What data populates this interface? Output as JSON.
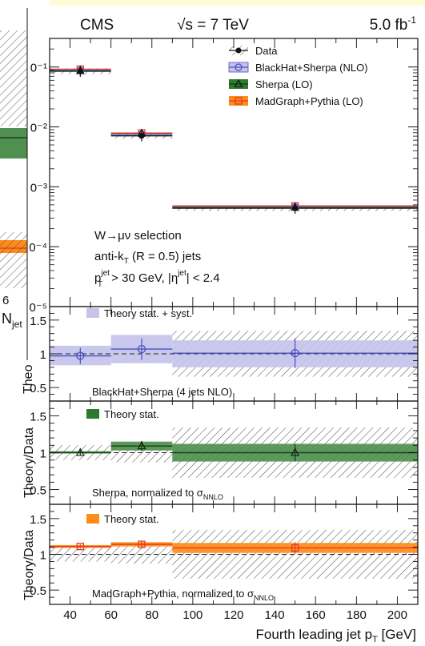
{
  "header": {
    "experiment": "CMS",
    "energy": "√s = 7 TeV",
    "lumi_value": "5.0 fb",
    "lumi_exp": "-1"
  },
  "left_fragment": {
    "label_num": "6",
    "label_n": "N",
    "label_sub": "jet",
    "axis_label": "Theo"
  },
  "colors": {
    "data": "#111111",
    "blackhat": "#4a4fc4",
    "blackhat_band": "#c5c3ea",
    "sherpa": "#2d7a2d",
    "sherpa_band": "#4f8f4f",
    "madgraph": "#e33b1e",
    "madgraph_band": "#ff8c1a"
  },
  "chart_data": [
    {
      "type": "line",
      "panel": "main",
      "yscale": "log",
      "xlim": [
        30,
        210
      ],
      "ylim": [
        1e-05,
        0.3
      ],
      "y_tick_labels": [
        "0⁻¹",
        "0⁻²",
        "0⁻³",
        "0⁻⁴",
        "0⁻⁵"
      ],
      "y_tick_values": [
        0.1,
        0.01,
        0.001,
        0.0001,
        1e-05
      ],
      "bins": [
        [
          30,
          60
        ],
        [
          60,
          90
        ],
        [
          90,
          210
        ]
      ],
      "bin_centers": [
        45,
        75,
        150
      ],
      "series": [
        {
          "name": "Data",
          "values": [
            0.085,
            0.0071,
            0.00044
          ]
        },
        {
          "name": "BlackHat+Sherpa (NLO)",
          "values": [
            0.088,
            0.0075,
            0.00046
          ]
        },
        {
          "name": "Sherpa (LO)",
          "values": [
            0.086,
            0.0078,
            0.00045
          ]
        },
        {
          "name": "MadGraph+Pythia (LO)",
          "values": [
            0.092,
            0.0079,
            0.00048
          ]
        }
      ],
      "legend_position": "top-right",
      "annotations": [
        "W→μν selection",
        "anti-k_T (R = 0.5) jets",
        "p_T^jet > 30 GeV, |η^jet| < 2.4"
      ],
      "annotation_text": {
        "line1": "W→μν selection",
        "line2a": "anti-k",
        "line2sub": "T",
        "line2b": " (R = 0.5) jets",
        "line3a": "p",
        "line3sup": "jet",
        "line3sub": "T",
        "line3b": " > 30 GeV, |η",
        "line3sup2": "jet",
        "line3c": "| < 2.4"
      }
    },
    {
      "type": "line",
      "panel": "ratio-blackhat",
      "ylim": [
        0.3,
        1.7
      ],
      "y_tick_labels": [
        "1.5",
        "1",
        "0.5"
      ],
      "y_tick_values": [
        1.5,
        1.0,
        0.5
      ],
      "bins": [
        [
          30,
          60
        ],
        [
          60,
          90
        ],
        [
          90,
          210
        ]
      ],
      "bin_centers": [
        45,
        75,
        150
      ],
      "values": [
        0.97,
        1.07,
        1.01
      ],
      "errors": [
        0.12,
        0.16,
        0.22
      ],
      "band_low": [
        0.83,
        0.86,
        0.8
      ],
      "band_high": [
        1.12,
        1.28,
        1.2
      ],
      "legend": "Theory stat. + syst.",
      "caption": "BlackHat+Sherpa (4 jets NLO)"
    },
    {
      "type": "line",
      "panel": "ratio-sherpa",
      "ylim": [
        0.3,
        1.7
      ],
      "y_tick_labels": [
        "1.5",
        "1",
        "0.5"
      ],
      "y_tick_values": [
        1.5,
        1.0,
        0.5
      ],
      "bins": [
        [
          30,
          60
        ],
        [
          60,
          90
        ],
        [
          90,
          210
        ]
      ],
      "bin_centers": [
        45,
        75,
        150
      ],
      "values": [
        1.0,
        1.09,
        1.0
      ],
      "errors": [
        0.04,
        0.07,
        0.12
      ],
      "band_low": [
        0.99,
        1.03,
        0.88
      ],
      "band_high": [
        1.02,
        1.15,
        1.12
      ],
      "legend": "Theory stat.",
      "caption_text": "Sherpa, normalized to σ",
      "caption_sub": "NNLO",
      "ylabel": "Theory/Data"
    },
    {
      "type": "line",
      "panel": "ratio-madgraph",
      "ylim": [
        0.3,
        1.7
      ],
      "y_tick_labels": [
        "1.5",
        "1",
        "0.5"
      ],
      "y_tick_values": [
        1.5,
        1.0,
        0.5
      ],
      "bins": [
        [
          30,
          60
        ],
        [
          60,
          90
        ],
        [
          90,
          210
        ]
      ],
      "bin_centers": [
        45,
        75,
        150
      ],
      "values": [
        1.11,
        1.14,
        1.09
      ],
      "errors": [
        0.03,
        0.04,
        0.08
      ],
      "band_low": [
        1.09,
        1.11,
        1.02
      ],
      "band_high": [
        1.13,
        1.17,
        1.16
      ],
      "legend": "Theory stat.",
      "caption_text": "MadGraph+Pythia, normalized to σ",
      "caption_sub": "NNLO",
      "ylabel": "Theory/Data",
      "xlabel_text": "Fourth leading jet p",
      "xlabel_sub": "T",
      "xlabel_unit": " [GeV]",
      "x_tick_labels": [
        "40",
        "60",
        "80",
        "100",
        "120",
        "140",
        "160",
        "180",
        "200"
      ],
      "x_tick_values": [
        40,
        60,
        80,
        100,
        120,
        140,
        160,
        180,
        200
      ]
    }
  ]
}
